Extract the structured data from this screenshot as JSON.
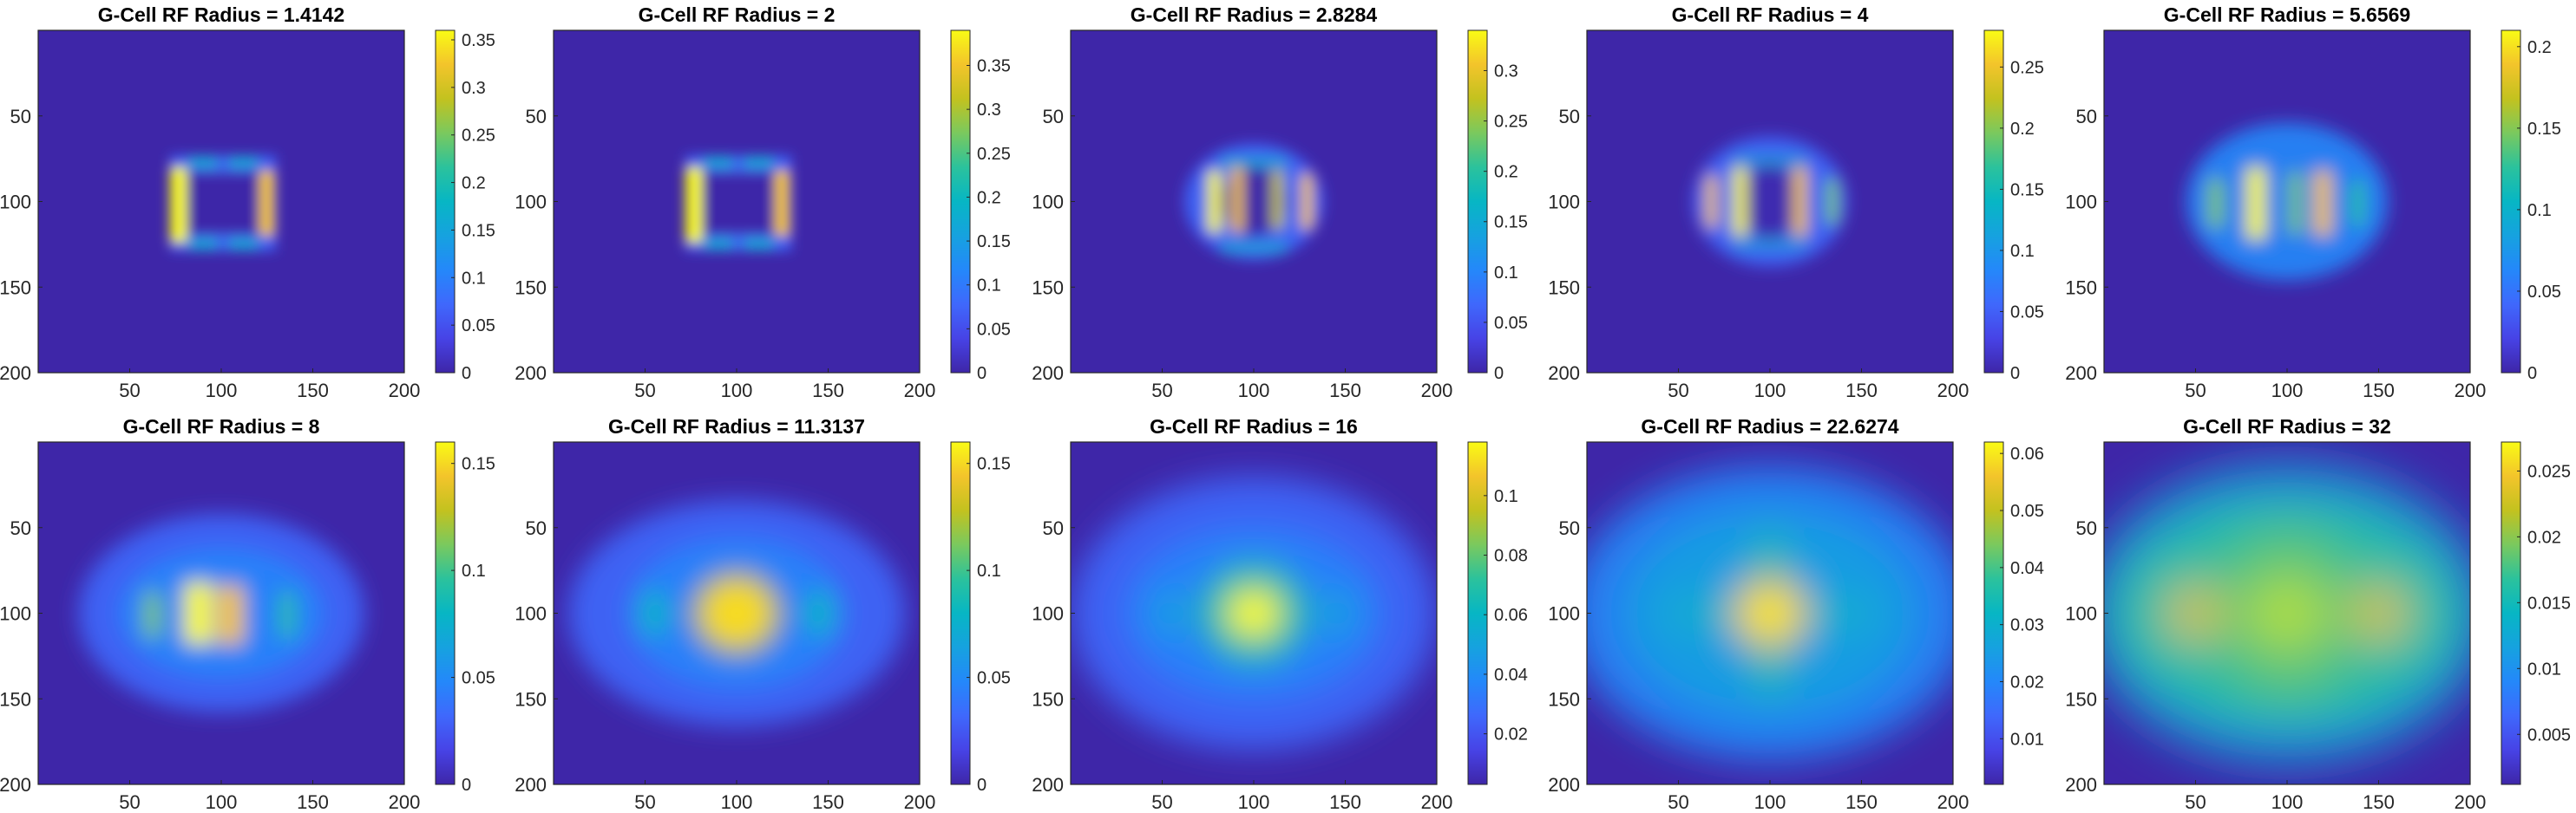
{
  "colors": {
    "map_low": "#3e26a8",
    "map_mid": "#20b2aa",
    "map_high": "#f9fb15",
    "axis": "#262626"
  },
  "chart_data": [
    {
      "type": "heatmap",
      "title": "G-Cell RF Radius = 1.4142",
      "x_ticks": [
        50,
        100,
        150,
        200
      ],
      "y_ticks": [
        50,
        100,
        150,
        200
      ],
      "xlim": [
        0,
        200
      ],
      "ylim": [
        0,
        200
      ],
      "colorbar_ticks": [
        "0",
        "0.05",
        "0.1",
        "0.15",
        "0.2",
        "0.25",
        "0.3",
        "0.35"
      ],
      "colorbar_values": [
        0,
        0.05,
        0.1,
        0.15,
        0.2,
        0.25,
        0.3,
        0.35
      ],
      "clim": [
        0,
        0.36
      ],
      "colormap": "parula",
      "pattern": "ring"
    },
    {
      "type": "heatmap",
      "title": "G-Cell RF Radius = 2",
      "x_ticks": [
        50,
        100,
        150,
        200
      ],
      "y_ticks": [
        50,
        100,
        150,
        200
      ],
      "xlim": [
        0,
        200
      ],
      "ylim": [
        0,
        200
      ],
      "colorbar_ticks": [
        "0",
        "0.05",
        "0.1",
        "0.15",
        "0.2",
        "0.25",
        "0.3",
        "0.35"
      ],
      "colorbar_values": [
        0,
        0.05,
        0.1,
        0.15,
        0.2,
        0.25,
        0.3,
        0.35
      ],
      "clim": [
        0,
        0.39
      ],
      "colormap": "parula",
      "pattern": "ring"
    },
    {
      "type": "heatmap",
      "title": "G-Cell RF Radius = 2.8284",
      "x_ticks": [
        50,
        100,
        150,
        200
      ],
      "y_ticks": [
        50,
        100,
        150,
        200
      ],
      "xlim": [
        0,
        200
      ],
      "ylim": [
        0,
        200
      ],
      "colorbar_ticks": [
        "0",
        "0.05",
        "0.1",
        "0.15",
        "0.2",
        "0.25",
        "0.3"
      ],
      "colorbar_values": [
        0,
        0.05,
        0.1,
        0.15,
        0.2,
        0.25,
        0.3
      ],
      "clim": [
        0,
        0.34
      ],
      "colormap": "parula",
      "pattern": "ring-bars"
    },
    {
      "type": "heatmap",
      "title": "G-Cell RF Radius = 4",
      "x_ticks": [
        50,
        100,
        150,
        200
      ],
      "y_ticks": [
        50,
        100,
        150,
        200
      ],
      "xlim": [
        0,
        200
      ],
      "ylim": [
        0,
        200
      ],
      "colorbar_ticks": [
        "0",
        "0.05",
        "0.1",
        "0.15",
        "0.2",
        "0.25"
      ],
      "colorbar_values": [
        0,
        0.05,
        0.1,
        0.15,
        0.2,
        0.25
      ],
      "clim": [
        0,
        0.28
      ],
      "colormap": "parula",
      "pattern": "bars"
    },
    {
      "type": "heatmap",
      "title": "G-Cell RF Radius = 5.6569",
      "x_ticks": [
        50,
        100,
        150,
        200
      ],
      "y_ticks": [
        50,
        100,
        150,
        200
      ],
      "xlim": [
        0,
        200
      ],
      "ylim": [
        0,
        200
      ],
      "colorbar_ticks": [
        "0",
        "0.05",
        "0.1",
        "0.15",
        "0.2"
      ],
      "colorbar_values": [
        0,
        0.05,
        0.1,
        0.15,
        0.2
      ],
      "clim": [
        0,
        0.21
      ],
      "colormap": "parula",
      "pattern": "bars-wide"
    },
    {
      "type": "heatmap",
      "title": "G-Cell RF Radius = 8",
      "x_ticks": [
        50,
        100,
        150,
        200
      ],
      "y_ticks": [
        50,
        100,
        150,
        200
      ],
      "xlim": [
        0,
        200
      ],
      "ylim": [
        0,
        200
      ],
      "colorbar_ticks": [
        "0",
        "0.05",
        "0.1",
        "0.15"
      ],
      "colorbar_values": [
        0,
        0.05,
        0.1,
        0.15
      ],
      "clim": [
        0,
        0.16
      ],
      "colormap": "parula",
      "pattern": "blobs"
    },
    {
      "type": "heatmap",
      "title": "G-Cell RF Radius = 11.3137",
      "x_ticks": [
        50,
        100,
        150,
        200
      ],
      "y_ticks": [
        50,
        100,
        150,
        200
      ],
      "xlim": [
        0,
        200
      ],
      "ylim": [
        0,
        200
      ],
      "colorbar_ticks": [
        "0",
        "0.05",
        "0.1",
        "0.15"
      ],
      "colorbar_values": [
        0,
        0.05,
        0.1,
        0.15
      ],
      "clim": [
        0,
        0.16
      ],
      "colormap": "parula",
      "pattern": "center-blob"
    },
    {
      "type": "heatmap",
      "title": "G-Cell RF Radius = 16",
      "x_ticks": [
        50,
        100,
        150,
        200
      ],
      "y_ticks": [
        50,
        100,
        150,
        200
      ],
      "xlim": [
        0,
        200
      ],
      "ylim": [
        0,
        200
      ],
      "colorbar_ticks": [
        "0.02",
        "0.04",
        "0.06",
        "0.08",
        "0.1"
      ],
      "colorbar_values": [
        0.02,
        0.04,
        0.06,
        0.08,
        0.1
      ],
      "clim": [
        0.003,
        0.118
      ],
      "colormap": "parula",
      "pattern": "center-glow"
    },
    {
      "type": "heatmap",
      "title": "G-Cell RF Radius = 22.6274",
      "x_ticks": [
        50,
        100,
        150,
        200
      ],
      "y_ticks": [
        50,
        100,
        150,
        200
      ],
      "xlim": [
        0,
        200
      ],
      "ylim": [
        0,
        200
      ],
      "colorbar_ticks": [
        "0.01",
        "0.02",
        "0.03",
        "0.04",
        "0.05",
        "0.06"
      ],
      "colorbar_values": [
        0.01,
        0.02,
        0.03,
        0.04,
        0.05,
        0.06
      ],
      "clim": [
        0.002,
        0.062
      ],
      "colormap": "parula",
      "pattern": "cross-glow"
    },
    {
      "type": "heatmap",
      "title": "G-Cell RF Radius = 32",
      "x_ticks": [
        50,
        100,
        150,
        200
      ],
      "y_ticks": [
        50,
        100,
        150,
        200
      ],
      "xlim": [
        0,
        200
      ],
      "ylim": [
        0,
        200
      ],
      "colorbar_ticks": [
        "0.005",
        "0.01",
        "0.015",
        "0.02",
        "0.025"
      ],
      "colorbar_values": [
        0.005,
        0.01,
        0.015,
        0.02,
        0.025
      ],
      "clim": [
        0.0012,
        0.0272
      ],
      "colormap": "parula",
      "pattern": "wide-glow"
    }
  ]
}
